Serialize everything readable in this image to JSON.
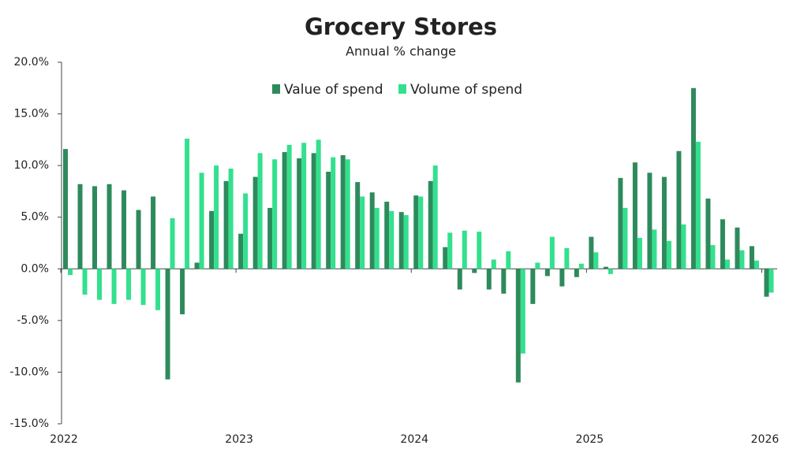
{
  "chart_data": {
    "type": "bar",
    "title": "Grocery Stores",
    "subtitle": "Annual % change",
    "categories": [
      "2022",
      null,
      null,
      null,
      null,
      null,
      null,
      null,
      null,
      null,
      null,
      null,
      "2023",
      null,
      null,
      null,
      null,
      null,
      null,
      null,
      null,
      null,
      null,
      null,
      "2024",
      null,
      null,
      null,
      null,
      null,
      null,
      null,
      null,
      null,
      null,
      null,
      "2025",
      null,
      null,
      null,
      null,
      null,
      null,
      null,
      null,
      null,
      null,
      null,
      "2026"
    ],
    "series": [
      {
        "name": "Value of spend",
        "color": "#2e8a5c",
        "values": [
          11.6,
          8.2,
          8.0,
          8.2,
          7.6,
          5.7,
          7.0,
          -10.7,
          -4.4,
          0.6,
          5.6,
          8.5,
          3.4,
          8.9,
          5.9,
          11.3,
          10.7,
          11.2,
          9.4,
          11.0,
          8.4,
          7.4,
          6.5,
          5.5,
          7.1,
          8.5,
          2.1,
          -2.0,
          -0.4,
          -2.0,
          -2.4,
          -11.0,
          -3.4,
          -0.7,
          -1.7,
          -0.8,
          3.1,
          0.2,
          8.8,
          10.3,
          9.3,
          8.9,
          11.4,
          17.5,
          6.8,
          4.8,
          4.0,
          2.2,
          -2.7
        ]
      },
      {
        "name": "Volume of spend",
        "color": "#33e08e",
        "values": [
          -0.6,
          -2.5,
          -3.0,
          -3.4,
          -3.0,
          -3.5,
          -4.0,
          4.9,
          12.6,
          9.3,
          10.0,
          9.7,
          7.3,
          11.2,
          10.6,
          12.0,
          12.2,
          12.5,
          10.8,
          10.6,
          7.0,
          5.9,
          5.6,
          5.2,
          7.0,
          10.0,
          3.5,
          3.7,
          3.6,
          0.9,
          1.7,
          -8.2,
          0.6,
          3.1,
          2.0,
          0.5,
          1.6,
          -0.5,
          5.9,
          3.0,
          3.8,
          2.7,
          4.3,
          12.3,
          2.3,
          0.9,
          1.8,
          0.8,
          -2.3
        ]
      }
    ],
    "ylim": [
      -15,
      20
    ],
    "yticks": [
      {
        "value": -15,
        "label": "-15.0%"
      },
      {
        "value": -10,
        "label": "-10.0%"
      },
      {
        "value": -5,
        "label": "-5.0%"
      },
      {
        "value": 0,
        "label": "0.0%"
      },
      {
        "value": 5,
        "label": "5.0%"
      },
      {
        "value": 10,
        "label": "10.0%"
      },
      {
        "value": 15,
        "label": "15.0%"
      },
      {
        "value": 20,
        "label": "20.0%"
      }
    ],
    "grid": false,
    "legend": "top"
  }
}
